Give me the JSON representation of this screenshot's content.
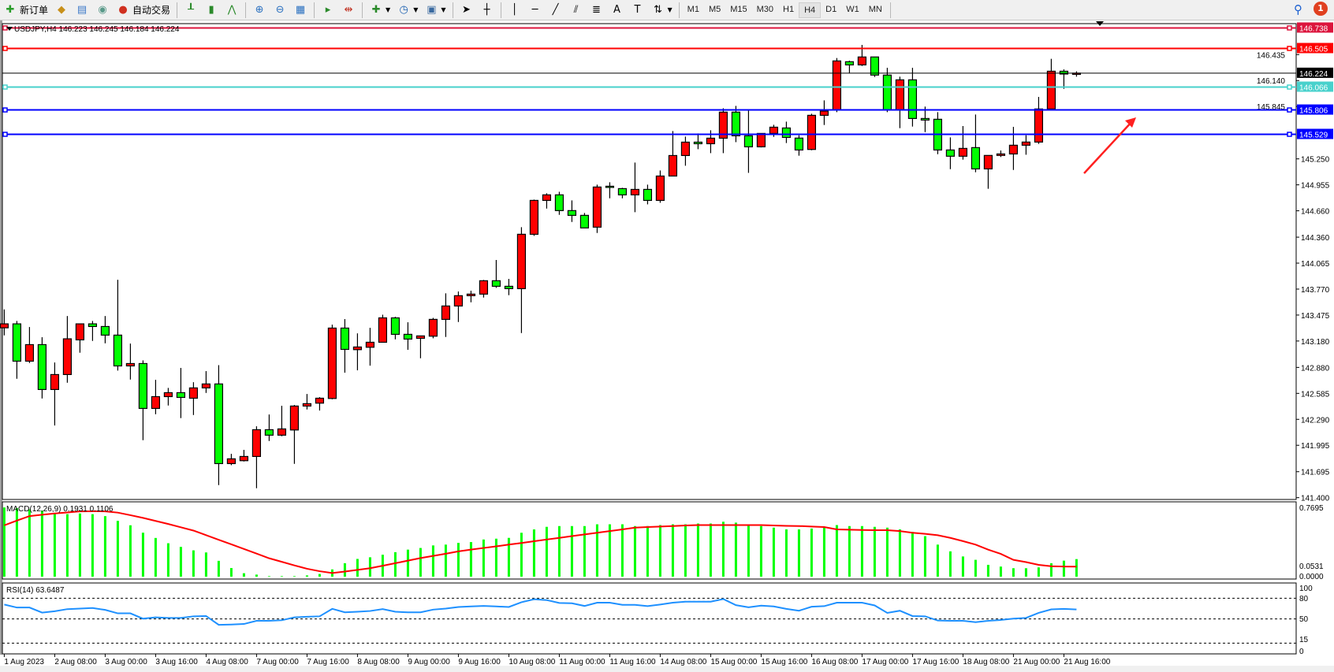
{
  "toolbar": {
    "new_order": "新订单",
    "auto_trading": "自动交易",
    "icons": [
      "new-order-icon",
      "market-watch-icon",
      "data-window-icon",
      "navigator-icon",
      "terminal-icon",
      "auto-trading-icon",
      "bar-chart-icon",
      "candlestick-icon",
      "line-chart-icon",
      "zoom-in-icon",
      "zoom-out-icon",
      "tile-windows-icon",
      "auto-scroll-icon",
      "chart-shift-icon",
      "indicators-icon",
      "periods-icon",
      "templates-icon",
      "cursor-icon",
      "crosshair-icon",
      "vertical-line-icon",
      "horizontal-line-icon",
      "trendline-icon",
      "channel-icon",
      "fibonacci-icon",
      "text-icon",
      "text-label-icon",
      "arrows-icon"
    ],
    "periods": [
      "M1",
      "M5",
      "M15",
      "M30",
      "H1",
      "H4",
      "D1",
      "W1",
      "MN"
    ],
    "active_period": "H4",
    "notification_count": "1"
  },
  "chart": {
    "header": "USDJPY,H4  146.223 146.245 146.184 146.224",
    "symbol": "USDJPY",
    "timeframe": "H4",
    "bull_color": "#ff0000",
    "bear_color": "#00ff00",
    "price_ticks": [
      "146.435",
      "146.140",
      "145.845",
      "145.250",
      "144.955",
      "144.660",
      "144.360",
      "144.065",
      "143.770",
      "143.475",
      "143.180",
      "142.880",
      "142.585",
      "142.290",
      "141.995",
      "141.695",
      "141.400"
    ],
    "hlines": [
      {
        "price": "146.738",
        "color": "#dc143c"
      },
      {
        "price": "146.505",
        "color": "#ff0000"
      },
      {
        "price": "146.224",
        "color": "#000000"
      },
      {
        "price": "146.066",
        "color": "#48d1cc"
      },
      {
        "price": "145.806",
        "color": "#0000ff"
      },
      {
        "price": "145.529",
        "color": "#0000ff"
      }
    ],
    "arrow_color": "#ff2020",
    "time_labels": [
      "1 Aug 2023",
      "2 Aug 08:00",
      "3 Aug 00:00",
      "3 Aug 16:00",
      "4 Aug 08:00",
      "7 Aug 00:00",
      "7 Aug 16:00",
      "8 Aug 08:00",
      "9 Aug 00:00",
      "9 Aug 16:00",
      "10 Aug 08:00",
      "11 Aug 00:00",
      "11 Aug 16:00",
      "14 Aug 08:00",
      "15 Aug 00:00",
      "15 Aug 16:00",
      "16 Aug 08:00",
      "17 Aug 00:00",
      "17 Aug 16:00",
      "18 Aug 08:00",
      "21 Aug 00:00",
      "21 Aug 16:00"
    ]
  },
  "chart_data": [
    {
      "type": "candlestick",
      "ylim": [
        141.4,
        146.738
      ],
      "ohlc": [
        [
          143.33,
          143.539,
          143.244,
          143.375
        ],
        [
          143.375,
          143.408,
          142.751,
          142.951
        ],
        [
          142.951,
          143.339,
          142.93,
          143.139
        ],
        [
          143.139,
          143.223,
          142.527,
          142.629
        ],
        [
          142.629,
          142.936,
          142.22,
          142.799
        ],
        [
          142.799,
          143.464,
          142.706,
          143.205
        ],
        [
          143.193,
          143.375,
          143.047,
          143.375
        ],
        [
          143.375,
          143.408,
          143.181,
          143.345
        ],
        [
          143.345,
          143.464,
          143.154,
          143.247
        ],
        [
          143.247,
          143.876,
          142.844,
          142.897
        ],
        [
          142.897,
          143.151,
          142.742,
          142.924
        ],
        [
          142.924,
          142.96,
          142.053,
          142.414
        ],
        [
          142.414,
          142.739,
          142.348,
          142.548
        ],
        [
          142.548,
          142.647,
          142.447,
          142.593
        ],
        [
          142.593,
          142.874,
          142.304,
          142.539
        ],
        [
          142.53,
          142.712,
          142.339,
          142.647
        ],
        [
          142.647,
          142.838,
          142.59,
          142.692
        ],
        [
          142.692,
          142.906,
          141.543,
          141.787
        ],
        [
          141.787,
          141.898,
          141.769,
          141.841
        ],
        [
          141.82,
          141.943,
          141.811,
          141.868
        ],
        [
          141.868,
          142.211,
          141.507,
          142.172
        ],
        [
          142.172,
          142.345,
          142.044,
          142.11
        ],
        [
          142.11,
          142.444,
          142.098,
          142.181
        ],
        [
          142.169,
          142.453,
          141.784,
          142.441
        ],
        [
          142.441,
          142.578,
          142.402,
          142.468
        ],
        [
          142.474,
          142.542,
          142.39,
          142.53
        ],
        [
          142.527,
          143.366,
          142.518,
          143.327
        ],
        [
          143.327,
          143.429,
          142.82,
          143.085
        ],
        [
          143.082,
          143.267,
          142.847,
          143.112
        ],
        [
          143.109,
          143.33,
          142.9,
          143.166
        ],
        [
          143.166,
          143.479,
          143.166,
          143.443
        ],
        [
          143.443,
          143.455,
          143.199,
          143.256
        ],
        [
          143.256,
          143.393,
          143.08,
          143.202
        ],
        [
          143.211,
          143.238,
          142.984,
          143.238
        ],
        [
          143.235,
          143.443,
          143.211,
          143.426
        ],
        [
          143.426,
          143.722,
          143.226,
          143.578
        ],
        [
          143.578,
          143.743,
          143.396,
          143.695
        ],
        [
          143.695,
          143.752,
          143.62,
          143.713
        ],
        [
          143.713,
          143.874,
          143.674,
          143.865
        ],
        [
          143.865,
          144.101,
          143.784,
          143.802
        ],
        [
          143.802,
          143.886,
          143.701,
          143.775
        ],
        [
          143.775,
          144.474,
          143.271,
          144.393
        ],
        [
          144.393,
          144.787,
          144.375,
          144.778
        ],
        [
          144.778,
          144.859,
          144.685,
          144.841
        ],
        [
          144.841,
          144.876,
          144.614,
          144.662
        ],
        [
          144.662,
          144.778,
          144.533,
          144.608
        ],
        [
          144.608,
          144.635,
          144.465,
          144.465
        ],
        [
          144.474,
          144.957,
          144.408,
          144.93
        ],
        [
          144.939,
          144.984,
          144.802,
          144.93
        ],
        [
          144.912,
          144.921,
          144.802,
          144.841
        ],
        [
          144.841,
          145.208,
          144.644,
          144.903
        ],
        [
          144.903,
          144.957,
          144.733,
          144.778
        ],
        [
          144.778,
          145.118,
          144.751,
          145.055
        ],
        [
          145.055,
          145.566,
          145.055,
          145.288
        ],
        [
          145.288,
          145.503,
          145.172,
          145.44
        ],
        [
          145.44,
          145.539,
          145.36,
          145.422
        ],
        [
          145.422,
          145.575,
          145.315,
          145.485
        ],
        [
          145.485,
          145.825,
          145.315,
          145.781
        ],
        [
          145.781,
          145.852,
          145.44,
          145.512
        ],
        [
          145.512,
          145.799,
          145.091,
          145.387
        ],
        [
          145.387,
          145.539,
          145.38,
          145.539
        ],
        [
          145.539,
          145.637,
          145.5,
          145.61
        ],
        [
          145.601,
          145.673,
          145.43,
          145.494
        ],
        [
          145.486,
          145.518,
          145.286,
          145.351
        ],
        [
          145.357,
          145.763,
          145.348,
          145.745
        ],
        [
          145.745,
          145.915,
          145.635,
          145.793
        ],
        [
          145.805,
          146.396,
          145.781,
          146.363
        ],
        [
          146.354,
          146.366,
          146.226,
          146.318
        ],
        [
          146.318,
          146.545,
          146.306,
          146.408
        ],
        [
          146.408,
          146.408,
          146.181,
          146.202
        ],
        [
          146.202,
          146.285,
          145.781,
          145.805
        ],
        [
          145.805,
          146.184,
          145.599,
          146.148
        ],
        [
          146.148,
          146.285,
          145.617,
          145.709
        ],
        [
          145.709,
          145.844,
          145.554,
          145.691
        ],
        [
          145.7,
          145.781,
          145.303,
          145.351
        ],
        [
          145.351,
          145.494,
          145.133,
          145.28
        ],
        [
          145.28,
          145.623,
          145.241,
          145.369
        ],
        [
          145.378,
          145.754,
          145.098,
          145.136
        ],
        [
          145.136,
          145.289,
          144.91,
          145.289
        ],
        [
          145.289,
          145.345,
          145.271,
          145.306
        ],
        [
          145.306,
          145.614,
          145.124,
          145.405
        ],
        [
          145.405,
          145.518,
          145.297,
          145.441
        ],
        [
          145.441,
          145.954,
          145.42,
          145.817
        ],
        [
          145.817,
          146.387,
          145.817,
          146.246
        ],
        [
          146.246,
          146.267,
          146.046,
          146.214
        ],
        [
          146.22,
          146.245,
          146.184,
          146.224
        ]
      ]
    },
    {
      "type": "bar",
      "title": "MACD(12,26,9) 0.1931 0.1106",
      "ylim": [
        0,
        0.7695
      ],
      "axis_labels": [
        "0.7695",
        "0.0000",
        "0.0531"
      ],
      "bar_color": "#00ff00",
      "signal_color": "#ff0000",
      "macd": [
        0.76,
        0.752,
        0.738,
        0.723,
        0.694,
        0.686,
        0.694,
        0.686,
        0.665,
        0.613,
        0.564,
        0.483,
        0.425,
        0.367,
        0.327,
        0.289,
        0.266,
        0.174,
        0.095,
        0.038,
        0.023,
        0.006,
        0.006,
        0.006,
        0.014,
        0.03,
        0.08,
        0.148,
        0.195,
        0.213,
        0.241,
        0.269,
        0.297,
        0.315,
        0.343,
        0.352,
        0.371,
        0.38,
        0.408,
        0.417,
        0.426,
        0.482,
        0.519,
        0.547,
        0.556,
        0.556,
        0.556,
        0.575,
        0.575,
        0.575,
        0.556,
        0.556,
        0.566,
        0.575,
        0.575,
        0.584,
        0.584,
        0.603,
        0.593,
        0.575,
        0.556,
        0.538,
        0.519,
        0.519,
        0.528,
        0.547,
        0.566,
        0.556,
        0.556,
        0.547,
        0.538,
        0.519,
        0.491,
        0.445,
        0.352,
        0.278,
        0.222,
        0.185,
        0.13,
        0.111,
        0.093,
        0.093,
        0.102,
        0.148,
        0.176,
        0.193
      ],
      "signal": [
        0.564,
        0.615,
        0.665,
        0.68,
        0.694,
        0.705,
        0.717,
        0.718,
        0.717,
        0.703,
        0.675,
        0.645,
        0.612,
        0.578,
        0.542,
        0.506,
        0.456,
        0.405,
        0.355,
        0.304,
        0.253,
        0.202,
        0.163,
        0.124,
        0.087,
        0.06,
        0.04,
        0.056,
        0.075,
        0.093,
        0.12,
        0.148,
        0.176,
        0.204,
        0.228,
        0.252,
        0.278,
        0.297,
        0.315,
        0.333,
        0.352,
        0.37,
        0.389,
        0.408,
        0.426,
        0.445,
        0.464,
        0.482,
        0.5,
        0.519,
        0.538,
        0.545,
        0.55,
        0.556,
        0.562,
        0.566,
        0.566,
        0.566,
        0.566,
        0.566,
        0.566,
        0.562,
        0.558,
        0.556,
        0.55,
        0.545,
        0.519,
        0.515,
        0.512,
        0.51,
        0.51,
        0.5,
        0.482,
        0.47,
        0.455,
        0.426,
        0.39,
        0.352,
        0.297,
        0.25,
        0.185,
        0.16,
        0.13,
        0.115,
        0.111,
        0.1106
      ]
    },
    {
      "type": "line",
      "title": "RSI(14) 63.6487",
      "ylim": [
        0,
        100
      ],
      "levels": [
        80,
        50,
        15
      ],
      "axis_labels": [
        "100",
        "80",
        "50",
        "15",
        "0"
      ],
      "line_color": "#1e90ff",
      "values": [
        70.8,
        66.5,
        66.5,
        59.2,
        61.2,
        64.2,
        65.0,
        65.8,
        63.1,
        58.1,
        58.1,
        50.4,
        52.3,
        51.5,
        51.5,
        53.8,
        54.2,
        41.5,
        41.9,
        42.7,
        47.3,
        47.3,
        48.1,
        52.3,
        53.1,
        53.8,
        64.6,
        59.6,
        60.4,
        61.5,
        64.2,
        60.4,
        59.6,
        59.6,
        63.5,
        65.0,
        67.3,
        68.1,
        68.8,
        68.1,
        67.3,
        74.2,
        78.5,
        77.3,
        73.1,
        72.7,
        68.8,
        73.5,
        73.5,
        70.4,
        70.4,
        68.5,
        70.8,
        73.5,
        75.0,
        75.0,
        75.0,
        78.8,
        70.0,
        66.9,
        69.2,
        68.1,
        64.6,
        61.9,
        67.7,
        68.5,
        73.5,
        73.5,
        73.5,
        69.6,
        58.8,
        61.9,
        54.2,
        53.8,
        47.7,
        47.3,
        47.3,
        45.4,
        47.3,
        48.5,
        50.4,
        51.5,
        58.8,
        63.8,
        64.6,
        63.6487
      ]
    }
  ]
}
